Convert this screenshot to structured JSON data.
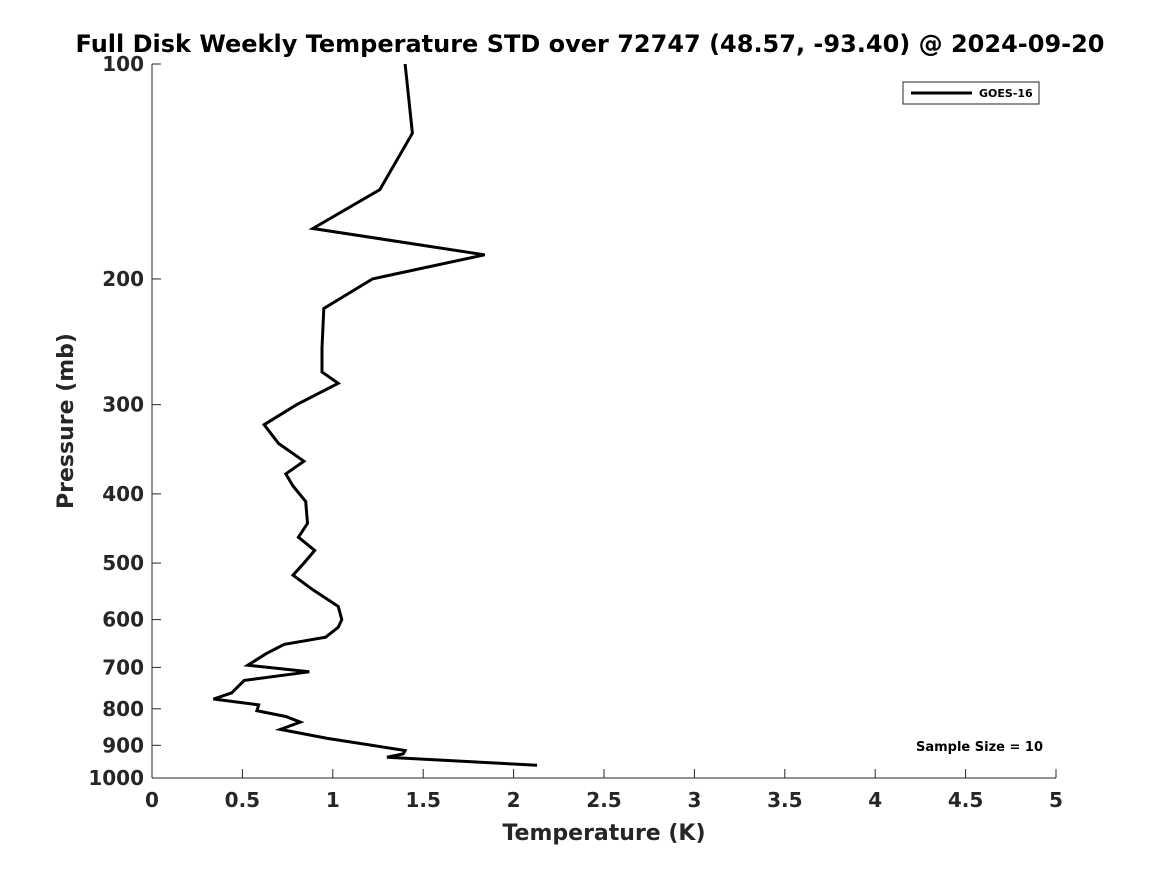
{
  "chart_data": {
    "type": "line",
    "title": "Full Disk Weekly Temperature STD over 72747 (48.57, -93.40) @ 2024-09-20",
    "xlabel": "Temperature (K)",
    "ylabel": "Pressure (mb)",
    "xlim": [
      0,
      5
    ],
    "ylim": [
      100,
      1000
    ],
    "y_scale": "log",
    "y_reversed": true,
    "x_ticks": [
      0,
      0.5,
      1,
      1.5,
      2,
      2.5,
      3,
      3.5,
      4,
      4.5,
      5
    ],
    "x_tick_labels": [
      "0",
      "0.5",
      "1",
      "1.5",
      "2",
      "2.5",
      "3",
      "3.5",
      "4",
      "4.5",
      "5"
    ],
    "y_ticks": [
      100,
      200,
      300,
      400,
      500,
      600,
      700,
      800,
      900,
      1000
    ],
    "y_tick_labels": [
      "100",
      "200",
      "300",
      "400",
      "500",
      "600",
      "700",
      "800",
      "900",
      "1000"
    ],
    "grid": false,
    "legend_position": "top-right",
    "series": [
      {
        "name": "GOES-16",
        "color": "#000000",
        "points": [
          [
            1.4,
            100
          ],
          [
            1.44,
            125
          ],
          [
            1.26,
            150
          ],
          [
            0.89,
            170
          ],
          [
            1.84,
            185
          ],
          [
            1.22,
            200
          ],
          [
            0.95,
            220
          ],
          [
            0.94,
            250
          ],
          [
            0.94,
            270
          ],
          [
            1.03,
            280
          ],
          [
            0.8,
            300
          ],
          [
            0.62,
            320
          ],
          [
            0.7,
            340
          ],
          [
            0.84,
            360
          ],
          [
            0.74,
            375
          ],
          [
            0.78,
            390
          ],
          [
            0.85,
            410
          ],
          [
            0.86,
            440
          ],
          [
            0.81,
            460
          ],
          [
            0.9,
            480
          ],
          [
            0.84,
            500
          ],
          [
            0.78,
            520
          ],
          [
            0.89,
            545
          ],
          [
            1.03,
            575
          ],
          [
            1.05,
            600
          ],
          [
            1.03,
            615
          ],
          [
            0.96,
            635
          ],
          [
            0.73,
            650
          ],
          [
            0.63,
            670
          ],
          [
            0.53,
            695
          ],
          [
            0.87,
            710
          ],
          [
            0.51,
            730
          ],
          [
            0.44,
            760
          ],
          [
            0.34,
            775
          ],
          [
            0.59,
            790
          ],
          [
            0.58,
            805
          ],
          [
            0.74,
            820
          ],
          [
            0.82,
            835
          ],
          [
            0.71,
            855
          ],
          [
            0.97,
            880
          ],
          [
            1.4,
            915
          ],
          [
            1.39,
            925
          ],
          [
            1.3,
            935
          ],
          [
            2.13,
            960
          ]
        ]
      }
    ],
    "annotations": [
      {
        "text": "Sample Size = 10",
        "position": "bottom-right"
      }
    ]
  }
}
